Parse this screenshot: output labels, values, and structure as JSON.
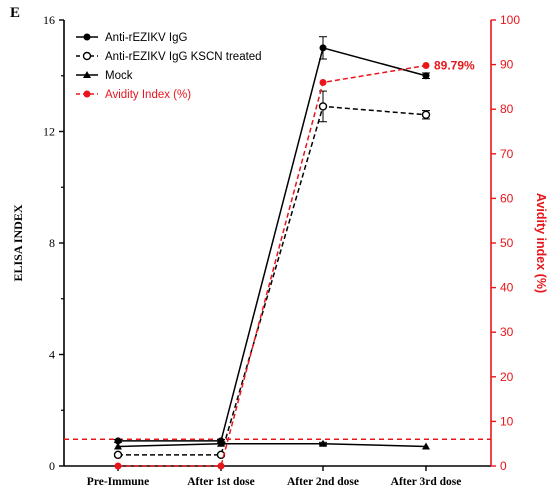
{
  "chart_data": {
    "type": "line",
    "panel_label": "E",
    "categories": [
      "Pre-Immune",
      "After 1st dose",
      "After 2nd dose",
      "After 3rd dose"
    ],
    "ylabel_left": "ELISA INDEX",
    "ylabel_right": "Avidity index (%)",
    "ylim_left": [
      0,
      16
    ],
    "ylim_right": [
      0,
      100
    ],
    "yticks_left": [
      "0",
      "4",
      "8",
      "12",
      "16"
    ],
    "yticks_right": [
      "0",
      "10",
      "20",
      "30",
      "40",
      "50",
      "60",
      "70",
      "80",
      "90",
      "100"
    ],
    "legend_position": "top-left",
    "grid": false,
    "series": [
      {
        "name": "Anti-rEZIKV IgG",
        "axis": "left",
        "values": [
          0.9,
          0.9,
          15.0,
          14.0
        ],
        "errors": [
          0.05,
          0.05,
          0.4,
          0.1
        ],
        "color": "#000000",
        "dash": "solid",
        "marker": "filled-circle"
      },
      {
        "name": "Anti-rEZIKV IgG KSCN treated",
        "axis": "left",
        "values": [
          0.4,
          0.4,
          12.9,
          12.6
        ],
        "errors": [
          0.05,
          0.05,
          0.55,
          0.15
        ],
        "color": "#000000",
        "dash": "dashed",
        "marker": "open-circle"
      },
      {
        "name": "Mock",
        "axis": "left",
        "values": [
          0.7,
          0.8,
          0.8,
          0.7
        ],
        "errors": [
          0.0,
          0.0,
          0.05,
          0.0
        ],
        "color": "#000000",
        "dash": "solid",
        "marker": "triangle"
      },
      {
        "name": "Avidity Index (%)",
        "axis": "right",
        "values": [
          0,
          0,
          86,
          89.79
        ],
        "color": "#e8161b",
        "dash": "dashed",
        "marker": "filled-circle"
      }
    ],
    "reference_line": {
      "axis": "right",
      "value": 6,
      "color": "#e8161b",
      "dash": "dashed"
    },
    "annotation": {
      "text": "89.79%",
      "series": 3,
      "point": 3,
      "color": "#e8161b"
    }
  }
}
